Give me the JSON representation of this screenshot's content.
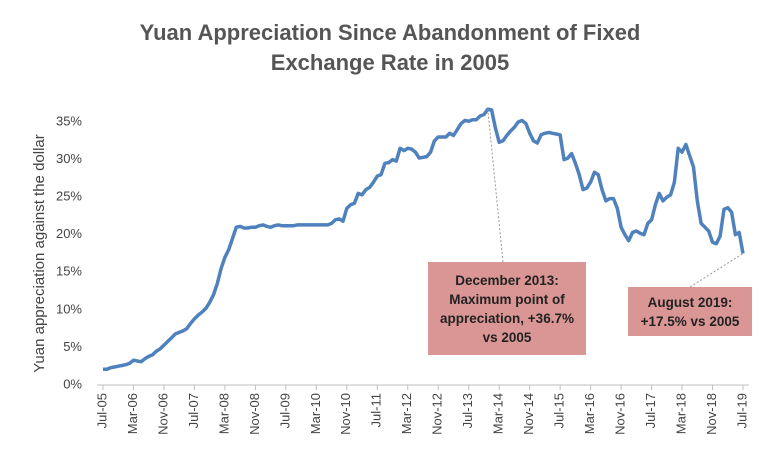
{
  "chart_data": {
    "type": "line",
    "title": "Yuan Appreciation Since Abandonment of Fixed Exchange Rate in 2005",
    "y_label": "Yuan appreciation against the dollar",
    "color": "#4f81bd",
    "categories": [
      "Jul-05",
      null,
      null,
      null,
      null,
      null,
      null,
      null,
      "Mar-06",
      null,
      null,
      null,
      null,
      null,
      null,
      null,
      "Nov-06",
      null,
      null,
      null,
      null,
      null,
      null,
      null,
      "Jul-07",
      null,
      null,
      null,
      null,
      null,
      null,
      null,
      "Mar-08",
      null,
      null,
      null,
      null,
      null,
      null,
      null,
      "Nov-08",
      null,
      null,
      null,
      null,
      null,
      null,
      null,
      "Jul-09",
      null,
      null,
      null,
      null,
      null,
      null,
      null,
      "Mar-10",
      null,
      null,
      null,
      null,
      null,
      null,
      null,
      "Nov-10",
      null,
      null,
      null,
      null,
      null,
      null,
      null,
      "Jul-11",
      null,
      null,
      null,
      null,
      null,
      null,
      null,
      "Mar-12",
      null,
      null,
      null,
      null,
      null,
      null,
      null,
      "Nov-12",
      null,
      null,
      null,
      null,
      null,
      null,
      null,
      "Jul-13",
      null,
      null,
      null,
      null,
      null,
      null,
      null,
      "Mar-14",
      null,
      null,
      null,
      null,
      null,
      null,
      null,
      "Nov-14",
      null,
      null,
      null,
      null,
      null,
      null,
      null,
      "Jul-15",
      null,
      null,
      null,
      null,
      null,
      null,
      null,
      "Mar-16",
      null,
      null,
      null,
      null,
      null,
      null,
      null,
      "Nov-16",
      null,
      null,
      null,
      null,
      null,
      null,
      null,
      "Jul-17",
      null,
      null,
      null,
      null,
      null,
      null,
      null,
      "Mar-18",
      null,
      null,
      null,
      null,
      null,
      null,
      null,
      "Nov-18",
      null,
      null,
      null,
      null,
      null,
      null,
      null,
      "Jul-19"
    ],
    "values": [
      2.1,
      2.1,
      2.3,
      2.4,
      2.5,
      2.6,
      2.7,
      2.9,
      3.3,
      3.2,
      3.1,
      3.5,
      3.8,
      4.0,
      4.5,
      4.8,
      5.3,
      5.8,
      6.3,
      6.8,
      7.0,
      7.2,
      7.5,
      8.2,
      8.8,
      9.3,
      9.7,
      10.2,
      11.0,
      12.0,
      13.5,
      15.5,
      17.0,
      18.0,
      19.5,
      21.0,
      21.1,
      20.9,
      20.9,
      21.0,
      21.0,
      21.2,
      21.3,
      21.1,
      21.0,
      21.2,
      21.3,
      21.2,
      21.2,
      21.2,
      21.2,
      21.3,
      21.3,
      21.3,
      21.3,
      21.3,
      21.3,
      21.3,
      21.3,
      21.3,
      21.5,
      22.0,
      22.1,
      21.8,
      23.5,
      24.0,
      24.2,
      25.5,
      25.3,
      26.0,
      26.3,
      27.0,
      27.8,
      28.0,
      29.5,
      29.6,
      30.0,
      29.8,
      31.5,
      31.2,
      31.5,
      31.4,
      31.0,
      30.2,
      30.3,
      30.4,
      31.0,
      32.5,
      33.0,
      33.0,
      33.0,
      33.5,
      33.2,
      34.0,
      34.8,
      35.2,
      35.1,
      35.3,
      35.3,
      35.8,
      36.0,
      36.7,
      36.6,
      34.2,
      32.3,
      32.5,
      33.2,
      33.8,
      34.3,
      35.0,
      35.2,
      34.8,
      33.5,
      32.5,
      32.2,
      33.3,
      33.5,
      33.6,
      33.5,
      33.4,
      33.3,
      30.0,
      30.2,
      30.8,
      29.5,
      28.0,
      26.0,
      26.2,
      27.0,
      28.3,
      28.0,
      26.0,
      24.5,
      24.8,
      24.8,
      23.5,
      21.0,
      20.0,
      19.2,
      20.3,
      20.5,
      20.2,
      20.0,
      21.5,
      22.0,
      24.0,
      25.5,
      24.5,
      25.0,
      25.3,
      27.0,
      31.5,
      31.0,
      32.0,
      30.5,
      29.0,
      24.5,
      21.5,
      21.0,
      20.5,
      19.0,
      18.8,
      19.8,
      23.4,
      23.6,
      23.0,
      20.0,
      20.3,
      17.5
    ],
    "ylim": [
      0,
      35
    ],
    "yticks": [
      {
        "value": 0,
        "label": "0%"
      },
      {
        "value": 5,
        "label": "5%"
      },
      {
        "value": 10,
        "label": "10%"
      },
      {
        "value": 15,
        "label": "15%"
      },
      {
        "value": 20,
        "label": "20%"
      },
      {
        "value": 25,
        "label": "25%"
      },
      {
        "value": 30,
        "label": "30%"
      },
      {
        "value": 35,
        "label": "35%"
      }
    ],
    "grid": false,
    "annotations": [
      {
        "text": "December 2013: Maximum point of appreciation, +36.7% vs 2005"
      },
      {
        "text": "August 2019: +17.5% vs 2005"
      }
    ]
  }
}
